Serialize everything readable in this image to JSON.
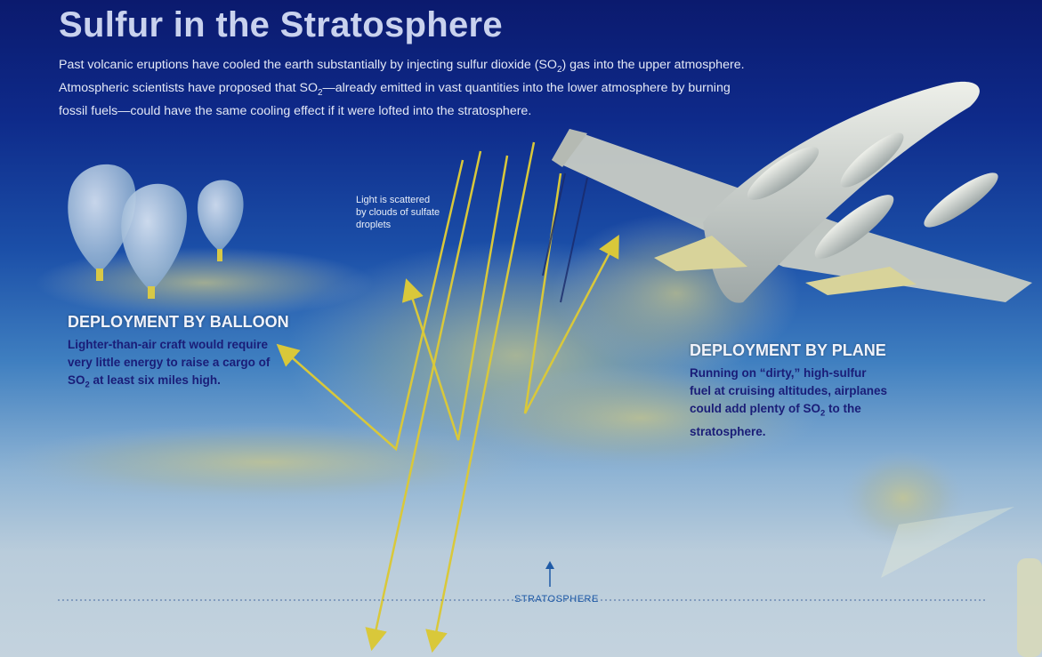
{
  "title": "Sulfur in the Stratosphere",
  "intro": {
    "line1_pre": "Past volcanic eruptions have cooled the earth substantially by injecting sulfur dioxide (SO",
    "line1_sub": "2",
    "line1_post": ") gas into the upper atmosphere.",
    "line2_pre": "Atmospheric scientists have proposed that SO",
    "line2_sub": "2",
    "line2_post": "—already emitted in vast quantities into the lower atmosphere by burning",
    "line3": "fossil fuels—could have the same cooling effect if it were lofted into the stratosphere."
  },
  "scatter_note": {
    "line1": "Light is scattered",
    "line2": "by clouds of sulfate",
    "line3": "droplets"
  },
  "balloon": {
    "heading": "DEPLOYMENT BY BALLOON",
    "line1": "Lighter-than-air craft would require",
    "line2": "very little energy to raise a cargo of",
    "line3_pre": "SO",
    "line3_sub": "2",
    "line3_post": " at least six miles high."
  },
  "plane": {
    "heading": "DEPLOYMENT BY PLANE",
    "line1": "Running on “dirty,” high-sulfur",
    "line2": "fuel at cruising altitudes, airplanes",
    "line3_pre": "could add plenty of SO",
    "line3_sub": "2",
    "line3_post": " to the",
    "line4": "stratosphere."
  },
  "stratosphere_label": "STRATOSPHERE",
  "colors": {
    "arrow_yellow": "#d9c83a",
    "sky_top": "#0b1a6e",
    "haze": "#b9ccdb",
    "label_blue": "#1f5aa6"
  }
}
